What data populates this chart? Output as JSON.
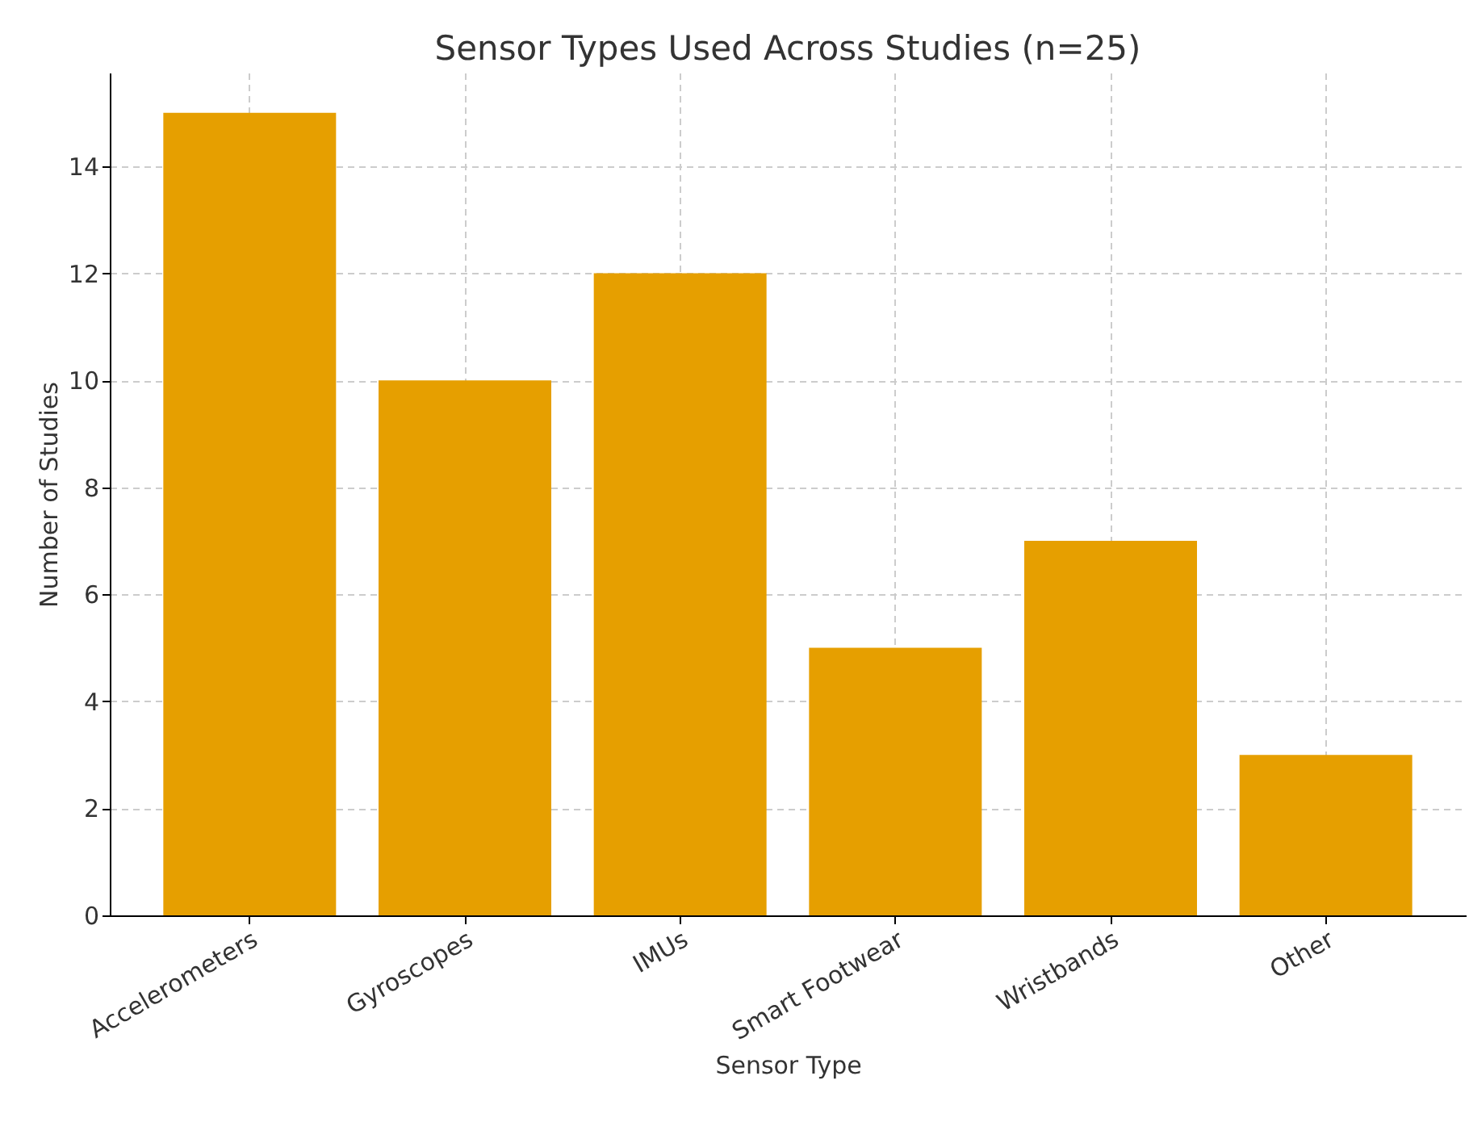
{
  "chart_data": {
    "type": "bar",
    "title": "Sensor Types Used Across Studies (n=25)",
    "xlabel": "Sensor Type",
    "ylabel": "Number of Studies",
    "categories": [
      "Accelerometers",
      "Gyroscopes",
      "IMUs",
      "Smart Footwear",
      "Wristbands",
      "Other"
    ],
    "values": [
      15,
      10,
      12,
      5,
      7,
      3
    ],
    "color": "#e69f00",
    "ylim": [
      0,
      15.75
    ],
    "yticks": [
      0,
      2,
      4,
      6,
      8,
      10,
      12,
      14
    ],
    "grid": true
  }
}
